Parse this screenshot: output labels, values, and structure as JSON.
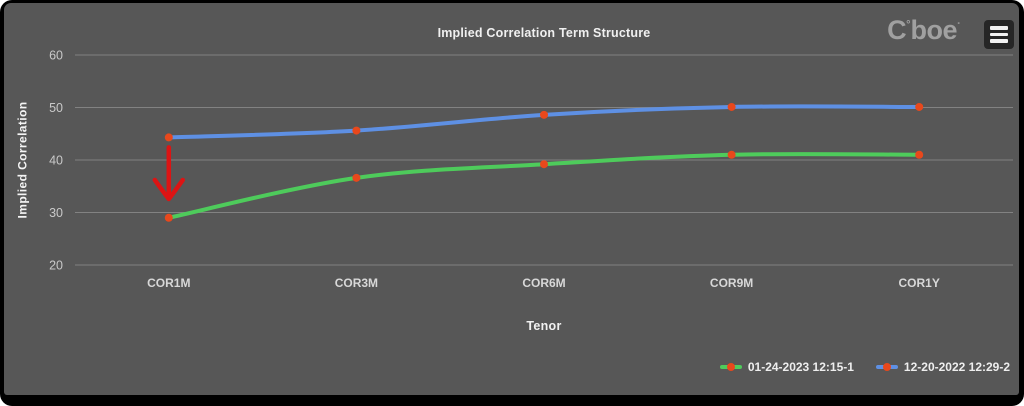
{
  "colors": {
    "frame_bg": "#000000",
    "chart_bg": "#575757",
    "gridline": "#828282",
    "tick_text": "#c9c9c9",
    "category_text": "#d8d8d8",
    "title_text": "#f0f0f0",
    "brand_text": "#a0a0a0"
  },
  "brand": {
    "c": "C",
    "degree": "°",
    "rest": "boe",
    "tm": "·"
  },
  "menu": {
    "icon": "hamburger-icon"
  },
  "chart_data": {
    "type": "line",
    "title": "Implied Correlation Term Structure",
    "xlabel": "Tenor",
    "ylabel": "Implied Correlation",
    "categories": [
      "COR1M",
      "COR3M",
      "COR6M",
      "COR9M",
      "COR1Y"
    ],
    "yticks": [
      20,
      30,
      40,
      50,
      60
    ],
    "ylim": [
      20,
      60
    ],
    "grid": "horizontal",
    "legend_position": "bottom-right",
    "series": [
      {
        "name": "01-24-2023 12:15-1",
        "color": "#4ecb5b",
        "marker_color": "#e8481c",
        "values": [
          29,
          36.6,
          39.2,
          41,
          41
        ]
      },
      {
        "name": "12-20-2022 12:29-2",
        "color": "#5e90e4",
        "marker_color": "#e8481c",
        "values": [
          44.3,
          45.6,
          48.6,
          50.1,
          50.1
        ]
      }
    ],
    "annotations": [
      {
        "type": "down-arrow",
        "category": "COR1M",
        "from_y": 42.4,
        "to_y": 32.2,
        "color": "#dc1414"
      }
    ]
  }
}
